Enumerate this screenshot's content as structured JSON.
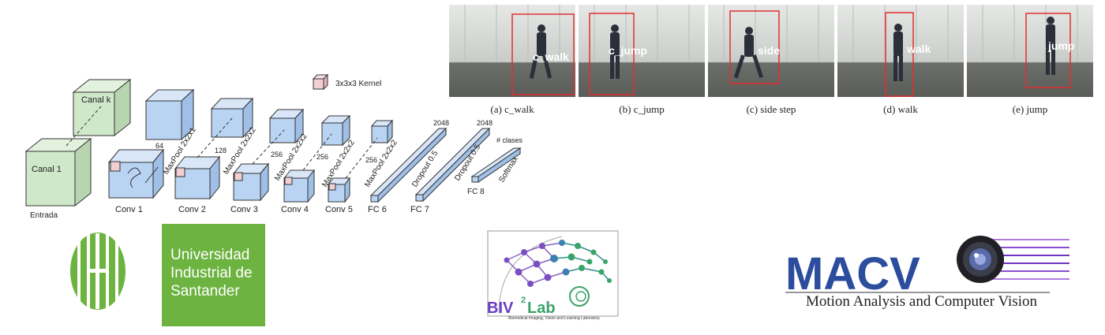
{
  "cnn": {
    "input_label": "Entrada",
    "channel_1": "Canal 1",
    "channel_k": "Canal k",
    "kernel_legend": "3x3x3 Kernel",
    "layers": [
      "Conv 1",
      "Conv 2",
      "Conv 3",
      "Conv 4",
      "Conv 5",
      "FC 6",
      "FC 7",
      "FC 8"
    ],
    "pool_labels": [
      "MaxPool 2x2x1",
      "MaxPool 2x2x2",
      "MaxPool 2x2x2",
      "MaxPool 2x2x2",
      "MaxPool 2x2x2"
    ],
    "dims": [
      "64",
      "128",
      "256",
      "256",
      "256",
      "2048",
      "2048",
      "# clases"
    ],
    "dropout_labels": [
      "Dropout 0.5",
      "Dropout 0.5"
    ],
    "softmax": "Softmax"
  },
  "frames": [
    {
      "overlay": "c_walk",
      "caption": "(a) c_walk"
    },
    {
      "overlay": "c_jump",
      "caption": "(b) c_jump"
    },
    {
      "overlay": "side",
      "caption": "(c) side step"
    },
    {
      "overlay": "walk",
      "caption": "(d) walk"
    },
    {
      "overlay": "jump",
      "caption": "(e) jump"
    }
  ],
  "logos": {
    "uis_text": "Universidad\nIndustrial de\nSantander",
    "biv_name": "BIV",
    "biv_sup": "2",
    "biv_lab": "Lab",
    "biv_subtitle": "Biomedical Imaging, Vision and Learning Laboratory",
    "macv_name": "MACV",
    "macv_subtitle": "Motion Analysis and Computer Vision"
  },
  "colors": {
    "input_fill": "#cfe8c9",
    "conv_fill": "#b9d3f2",
    "kernel_fill": "#f2cfd3",
    "uis_green": "#6cb33f",
    "macv_blue": "#2c4d9e",
    "bbox_red": "#e03030"
  }
}
